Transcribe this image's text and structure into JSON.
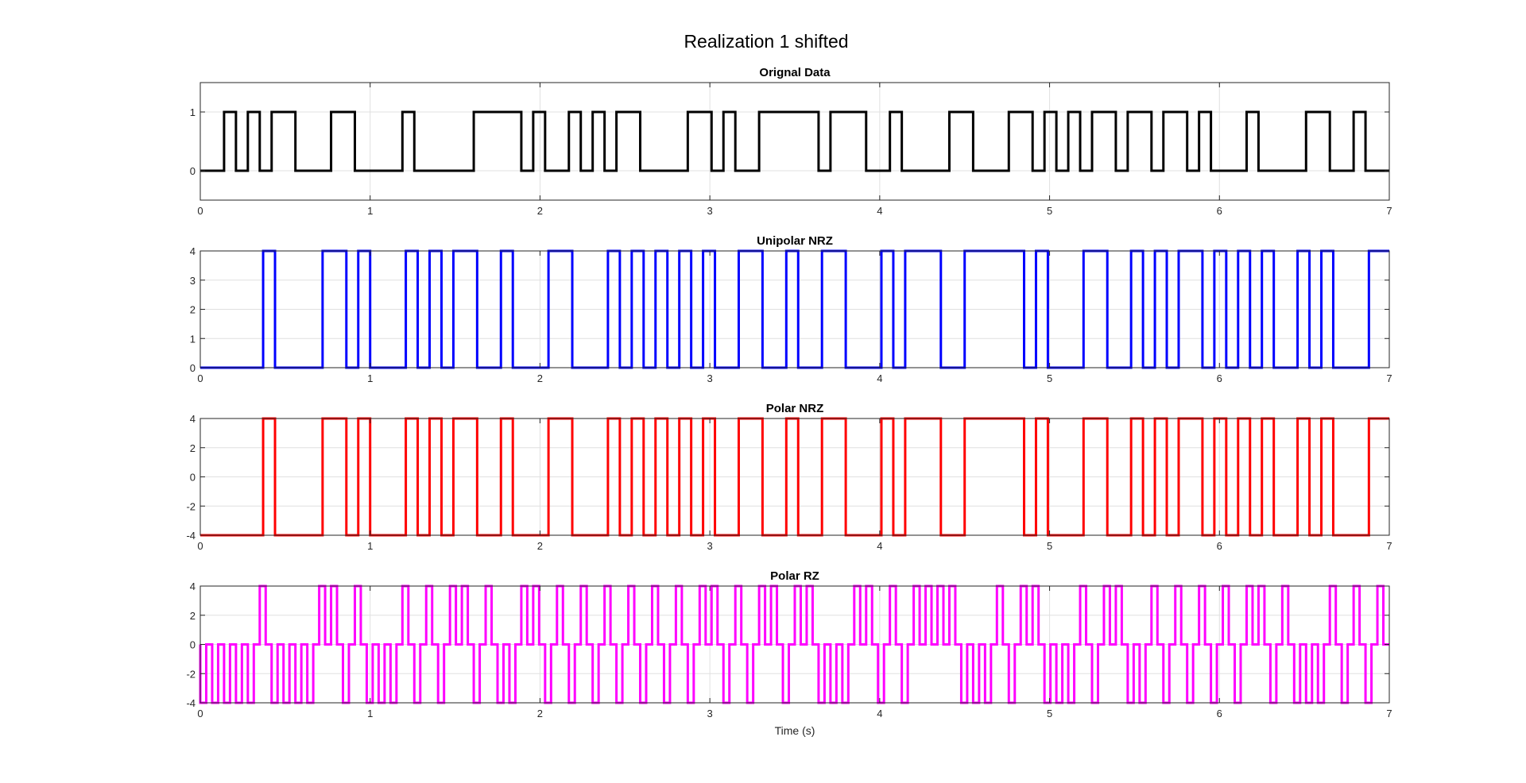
{
  "figure_title": "Realization 1 shifted",
  "chart_data": [
    {
      "type": "line",
      "step": true,
      "title": "Orignal Data",
      "color": "#000000",
      "xlim": [
        0,
        7
      ],
      "ylim": [
        -0.5,
        1.5
      ],
      "yticks": [
        0,
        1
      ],
      "xticks": [
        0,
        1,
        2,
        3,
        4,
        5,
        6,
        7
      ],
      "xlabel": "",
      "grid": true,
      "series": [
        {
          "x": [
            0,
            0.14,
            0.14,
            0.21,
            0.21,
            0.28,
            0.28,
            0.35,
            0.35,
            0.42,
            0.42,
            0.56,
            0.56,
            0.77,
            0.77,
            0.91,
            0.91,
            1.19,
            1.19,
            1.26,
            1.26,
            1.61,
            1.61,
            1.89,
            1.89,
            1.96,
            1.96,
            2.03,
            2.03,
            2.17,
            2.17,
            2.24,
            2.24,
            2.31,
            2.31,
            2.38,
            2.38,
            2.45,
            2.45,
            2.59,
            2.59,
            2.87,
            2.87,
            3.01,
            3.01,
            3.08,
            3.08,
            3.15,
            3.15,
            3.29,
            3.29,
            3.64,
            3.64,
            3.71,
            3.71,
            3.92,
            3.92,
            4.06,
            4.06,
            4.13,
            4.13,
            4.41,
            4.41,
            4.55,
            4.55,
            4.76,
            4.76,
            4.9,
            4.9,
            4.97,
            4.97,
            5.04,
            5.04,
            5.11,
            5.11,
            5.18,
            5.18,
            5.25,
            5.25,
            5.39,
            5.39,
            5.46,
            5.46,
            5.6,
            5.6,
            5.67,
            5.67,
            5.81,
            5.81,
            5.88,
            5.88,
            5.95,
            5.95,
            6.16,
            6.16,
            6.23,
            6.23,
            6.51,
            6.51,
            6.65,
            6.65,
            6.79,
            6.79,
            6.86,
            6.86,
            7.0
          ],
          "y": [
            0,
            0,
            1,
            1,
            0,
            0,
            1,
            1,
            0,
            0,
            1,
            1,
            0,
            0,
            1,
            1,
            0,
            0,
            1,
            1,
            0,
            0,
            1,
            1,
            0,
            0,
            1,
            1,
            0,
            0,
            1,
            1,
            0,
            0,
            1,
            1,
            0,
            0,
            1,
            1,
            0,
            0,
            1,
            1,
            0,
            0,
            1,
            1,
            0,
            0,
            1,
            1,
            0,
            0,
            1,
            1,
            0,
            0,
            1,
            1,
            0,
            0,
            1,
            1,
            0,
            0,
            1,
            1,
            0,
            0,
            1,
            1,
            0,
            0,
            1,
            1,
            0,
            0,
            1,
            1,
            0,
            0,
            1,
            1,
            0,
            0,
            1,
            1,
            0,
            0,
            1,
            1,
            0,
            0,
            1,
            1,
            0,
            0,
            1,
            1,
            0,
            0,
            1,
            1,
            0,
            0
          ]
        }
      ]
    },
    {
      "type": "line",
      "step": true,
      "title": "Unipolar NRZ",
      "color": "#0000ff",
      "xlim": [
        0,
        7
      ],
      "ylim": [
        0,
        4
      ],
      "yticks": [
        0,
        1,
        2,
        3,
        4
      ],
      "xticks": [
        0,
        1,
        2,
        3,
        4,
        5,
        6,
        7
      ],
      "xlabel": "",
      "grid": true,
      "series": [
        {
          "x": [
            0,
            0.37,
            0.37,
            0.44,
            0.44,
            0.72,
            0.72,
            0.86,
            0.86,
            0.93,
            0.93,
            1.0,
            1.0,
            1.21,
            1.21,
            1.28,
            1.28,
            1.35,
            1.35,
            1.42,
            1.42,
            1.49,
            1.49,
            1.63,
            1.63,
            1.77,
            1.77,
            1.84,
            1.84,
            2.05,
            2.05,
            2.19,
            2.19,
            2.4,
            2.4,
            2.47,
            2.47,
            2.54,
            2.54,
            2.61,
            2.61,
            2.68,
            2.68,
            2.75,
            2.75,
            2.82,
            2.82,
            2.89,
            2.89,
            2.96,
            2.96,
            3.03,
            3.03,
            3.17,
            3.17,
            3.31,
            3.31,
            3.45,
            3.45,
            3.52,
            3.52,
            3.66,
            3.66,
            3.8,
            3.8,
            4.01,
            4.01,
            4.08,
            4.08,
            4.15,
            4.15,
            4.36,
            4.36,
            4.5,
            4.5,
            4.85,
            4.85,
            4.92,
            4.92,
            4.99,
            4.99,
            5.2,
            5.2,
            5.34,
            5.34,
            5.48,
            5.48,
            5.55,
            5.55,
            5.62,
            5.62,
            5.69,
            5.69,
            5.76,
            5.76,
            5.9,
            5.9,
            5.97,
            5.97,
            6.04,
            6.04,
            6.11,
            6.11,
            6.18,
            6.18,
            6.25,
            6.25,
            6.32,
            6.32,
            6.46,
            6.46,
            6.53,
            6.53,
            6.6,
            6.6,
            6.67,
            6.67,
            6.88,
            6.88,
            7.0
          ],
          "y": [
            0,
            0,
            4,
            4,
            0,
            0,
            4,
            4,
            0,
            0,
            4,
            4,
            0,
            0,
            4,
            4,
            0,
            0,
            4,
            4,
            0,
            0,
            4,
            4,
            0,
            0,
            4,
            4,
            0,
            0,
            4,
            4,
            0,
            0,
            4,
            4,
            0,
            0,
            4,
            4,
            0,
            0,
            4,
            4,
            0,
            0,
            4,
            4,
            0,
            0,
            4,
            4,
            0,
            0,
            4,
            4,
            0,
            0,
            4,
            4,
            0,
            0,
            4,
            4,
            0,
            0,
            4,
            4,
            0,
            0,
            4,
            4,
            0,
            0,
            4,
            4,
            0,
            0,
            4,
            4,
            0,
            0,
            4,
            4,
            0,
            0,
            4,
            4,
            0,
            0,
            4,
            4,
            0,
            0,
            4,
            4,
            0,
            0,
            4,
            4,
            0,
            0,
            4,
            4,
            0,
            0,
            4,
            4,
            0,
            0,
            4,
            4,
            0,
            0,
            4,
            4,
            0,
            0,
            4,
            4
          ]
        }
      ]
    },
    {
      "type": "line",
      "step": true,
      "title": "Polar NRZ",
      "color": "#ff0000",
      "xlim": [
        0,
        7
      ],
      "ylim": [
        -4,
        4
      ],
      "yticks": [
        -4,
        -2,
        0,
        2,
        4
      ],
      "xticks": [
        0,
        1,
        2,
        3,
        4,
        5,
        6,
        7
      ],
      "xlabel": "",
      "grid": true,
      "series": [
        {
          "x": [
            0,
            0.37,
            0.37,
            0.44,
            0.44,
            0.72,
            0.72,
            0.86,
            0.86,
            0.93,
            0.93,
            1.0,
            1.0,
            1.21,
            1.21,
            1.28,
            1.28,
            1.35,
            1.35,
            1.42,
            1.42,
            1.49,
            1.49,
            1.63,
            1.63,
            1.77,
            1.77,
            1.84,
            1.84,
            2.05,
            2.05,
            2.19,
            2.19,
            2.4,
            2.4,
            2.47,
            2.47,
            2.54,
            2.54,
            2.61,
            2.61,
            2.68,
            2.68,
            2.75,
            2.75,
            2.82,
            2.82,
            2.89,
            2.89,
            2.96,
            2.96,
            3.03,
            3.03,
            3.17,
            3.17,
            3.31,
            3.31,
            3.45,
            3.45,
            3.52,
            3.52,
            3.66,
            3.66,
            3.8,
            3.8,
            4.01,
            4.01,
            4.08,
            4.08,
            4.15,
            4.15,
            4.36,
            4.36,
            4.5,
            4.5,
            4.85,
            4.85,
            4.92,
            4.92,
            4.99,
            4.99,
            5.2,
            5.2,
            5.34,
            5.34,
            5.48,
            5.48,
            5.55,
            5.55,
            5.62,
            5.62,
            5.69,
            5.69,
            5.76,
            5.76,
            5.9,
            5.9,
            5.97,
            5.97,
            6.04,
            6.04,
            6.11,
            6.11,
            6.18,
            6.18,
            6.25,
            6.25,
            6.32,
            6.32,
            6.46,
            6.46,
            6.53,
            6.53,
            6.6,
            6.6,
            6.67,
            6.67,
            6.88,
            6.88,
            7.0
          ],
          "y": [
            -4,
            -4,
            4,
            4,
            -4,
            -4,
            4,
            4,
            -4,
            -4,
            4,
            4,
            -4,
            -4,
            4,
            4,
            -4,
            -4,
            4,
            4,
            -4,
            -4,
            4,
            4,
            -4,
            -4,
            4,
            4,
            -4,
            -4,
            4,
            4,
            -4,
            -4,
            4,
            4,
            -4,
            -4,
            4,
            4,
            -4,
            -4,
            4,
            4,
            -4,
            -4,
            4,
            4,
            -4,
            -4,
            4,
            4,
            -4,
            -4,
            4,
            4,
            -4,
            -4,
            4,
            4,
            -4,
            -4,
            4,
            4,
            -4,
            -4,
            4,
            4,
            -4,
            -4,
            4,
            4,
            -4,
            -4,
            4,
            4,
            -4,
            -4,
            4,
            4,
            -4,
            -4,
            4,
            4,
            -4,
            -4,
            4,
            4,
            -4,
            -4,
            4,
            4,
            -4,
            -4,
            4,
            4,
            -4,
            -4,
            4,
            4,
            -4,
            -4,
            4,
            4,
            -4,
            -4,
            4,
            4,
            -4,
            -4,
            4,
            4,
            -4,
            -4,
            4,
            4,
            -4,
            -4,
            4,
            4
          ]
        }
      ]
    },
    {
      "type": "line",
      "step": true,
      "title": "Polar RZ",
      "color": "#ff00ff",
      "xlim": [
        0,
        7
      ],
      "ylim": [
        -4,
        4
      ],
      "yticks": [
        -4,
        -2,
        0,
        2,
        4
      ],
      "xticks": [
        0,
        1,
        2,
        3,
        4,
        5,
        6,
        7
      ],
      "xlabel": "Time (s)",
      "grid": true,
      "bit_period": 0.07,
      "bits": [
        0,
        0,
        0,
        0,
        0,
        1,
        0,
        0,
        0,
        0,
        1,
        1,
        0,
        1,
        0,
        0,
        0,
        1,
        0,
        1,
        0,
        1,
        1,
        0,
        1,
        0,
        0,
        1,
        1,
        0,
        1,
        0,
        1,
        0,
        1,
        0,
        1,
        0,
        1,
        0,
        1,
        0,
        1,
        1,
        0,
        1,
        0,
        1,
        1,
        0,
        1,
        1,
        0,
        0,
        0,
        1,
        1,
        0,
        1,
        0,
        1,
        1,
        1,
        1,
        0,
        0,
        0,
        1,
        0,
        1,
        1,
        0,
        0,
        0,
        1,
        0,
        1,
        1,
        0,
        0,
        1,
        0,
        1,
        0,
        1,
        0,
        1,
        0,
        1,
        1,
        0,
        1,
        0,
        0,
        0,
        1,
        0,
        1,
        0,
        1,
        1,
        1
      ],
      "series": [
        {
          "encoding": "polar-rz",
          "high": 4,
          "low": -4,
          "rest": 0
        }
      ]
    }
  ]
}
